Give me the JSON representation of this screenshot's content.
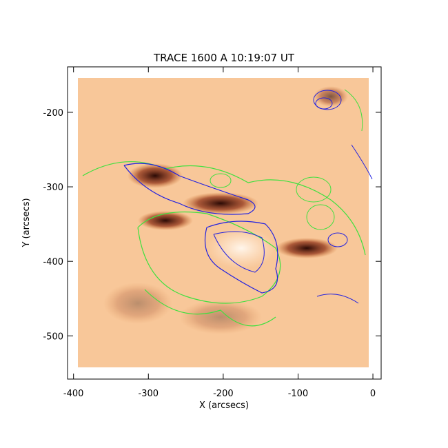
{
  "chart_data": {
    "type": "image",
    "title": "TRACE 1600 A 10:19:07 UT",
    "x_label": "X (arcsecs)",
    "y_label": "Y (arcsecs)",
    "xlim": [
      -408,
      11
    ],
    "ylim": [
      -558,
      -139
    ],
    "xticks": [
      -400,
      -300,
      -200,
      -100,
      0
    ],
    "yticks": [
      -500,
      -400,
      -300,
      -200
    ]
  }
}
